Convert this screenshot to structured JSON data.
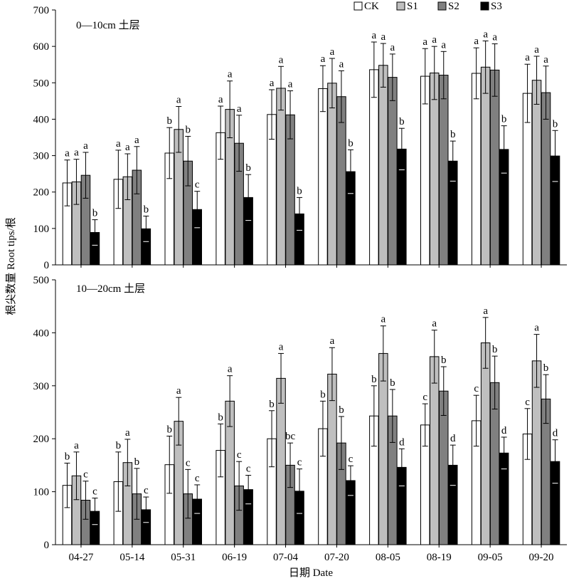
{
  "chart_data": [
    {
      "type": "bar",
      "title": "0—10cm 土层",
      "categories": [
        "04-27",
        "05-14",
        "05-31",
        "06-19",
        "07-04",
        "07-20",
        "08-05",
        "08-19",
        "09-05",
        "09-20"
      ],
      "ylim": [
        0,
        700
      ],
      "yticks": [
        0,
        100,
        200,
        300,
        400,
        500,
        600,
        700
      ],
      "series": [
        {
          "name": "CK",
          "color": "#ffffff",
          "values": [
            225,
            235,
            307,
            363,
            413,
            484,
            536,
            518,
            526,
            471
          ],
          "errors": [
            63,
            80,
            70,
            73,
            68,
            63,
            76,
            76,
            70,
            80
          ],
          "letters": [
            "a",
            "a",
            "b",
            "a",
            "a",
            "a",
            "a",
            "a",
            "a",
            "a"
          ]
        },
        {
          "name": "S1",
          "color": "#bfbfbf",
          "values": [
            228,
            242,
            372,
            427,
            485,
            499,
            548,
            527,
            543,
            507
          ],
          "errors": [
            62,
            63,
            63,
            78,
            60,
            68,
            60,
            73,
            72,
            66
          ],
          "letters": [
            "a",
            "a",
            "a",
            "a",
            "a",
            "a",
            "a",
            "a",
            "a",
            "a"
          ]
        },
        {
          "name": "S2",
          "color": "#808080",
          "values": [
            246,
            260,
            285,
            334,
            412,
            462,
            515,
            521,
            535,
            473
          ],
          "errors": [
            63,
            65,
            68,
            77,
            66,
            71,
            64,
            65,
            72,
            73
          ],
          "letters": [
            "a",
            "a",
            "b",
            "a",
            "a",
            "a",
            "a",
            "a",
            "a",
            "a"
          ]
        },
        {
          "name": "S3",
          "color": "#000000",
          "values": [
            89,
            99,
            152,
            185,
            140,
            256,
            318,
            285,
            317,
            299
          ],
          "errors": [
            35,
            35,
            50,
            63,
            45,
            60,
            57,
            55,
            65,
            70
          ],
          "letters": [
            "b",
            "b",
            "c",
            "b",
            "b",
            "b",
            "b",
            "b",
            "b",
            "b"
          ]
        }
      ]
    },
    {
      "type": "bar",
      "title": "10—20cm 土层",
      "categories": [
        "04-27",
        "05-14",
        "05-31",
        "06-19",
        "07-04",
        "07-20",
        "08-05",
        "08-19",
        "09-05",
        "09-20"
      ],
      "ylim": [
        0,
        500
      ],
      "yticks": [
        0,
        100,
        200,
        300,
        400,
        500
      ],
      "series": [
        {
          "name": "CK",
          "values": [
            112,
            119,
            151,
            178,
            200,
            219,
            243,
            226,
            234,
            209
          ],
          "errors": [
            42,
            56,
            54,
            50,
            53,
            52,
            57,
            40,
            48,
            48
          ],
          "letters": [
            "b",
            "b",
            "b",
            "b",
            "b",
            "b",
            "b",
            "c",
            "c",
            "c"
          ]
        },
        {
          "name": "S1",
          "values": [
            130,
            155,
            233,
            271,
            314,
            322,
            361,
            355,
            381,
            347
          ],
          "errors": [
            45,
            44,
            45,
            48,
            47,
            50,
            52,
            50,
            48,
            50
          ],
          "letters": [
            "a",
            "a",
            "a",
            "a",
            "a",
            "a",
            "a",
            "a",
            "a",
            "a"
          ]
        },
        {
          "name": "S2",
          "values": [
            84,
            96,
            96,
            111,
            150,
            192,
            243,
            290,
            306,
            275
          ],
          "errors": [
            36,
            48,
            46,
            46,
            42,
            50,
            50,
            46,
            50,
            46
          ],
          "letters": [
            "c",
            "b",
            "c",
            "c",
            "bc",
            "b",
            "b",
            "b",
            "b",
            "b"
          ]
        },
        {
          "name": "S3",
          "values": [
            63,
            66,
            86,
            104,
            101,
            121,
            146,
            150,
            173,
            157
          ],
          "errors": [
            25,
            24,
            27,
            27,
            42,
            28,
            35,
            38,
            30,
            41
          ],
          "letters": [
            "c",
            "c",
            "c",
            "c",
            "c",
            "c",
            "d",
            "d",
            "d",
            "d"
          ]
        }
      ]
    }
  ],
  "xlabel": "日期 Date",
  "ylabel": "根尖数量 Root tips/根"
}
